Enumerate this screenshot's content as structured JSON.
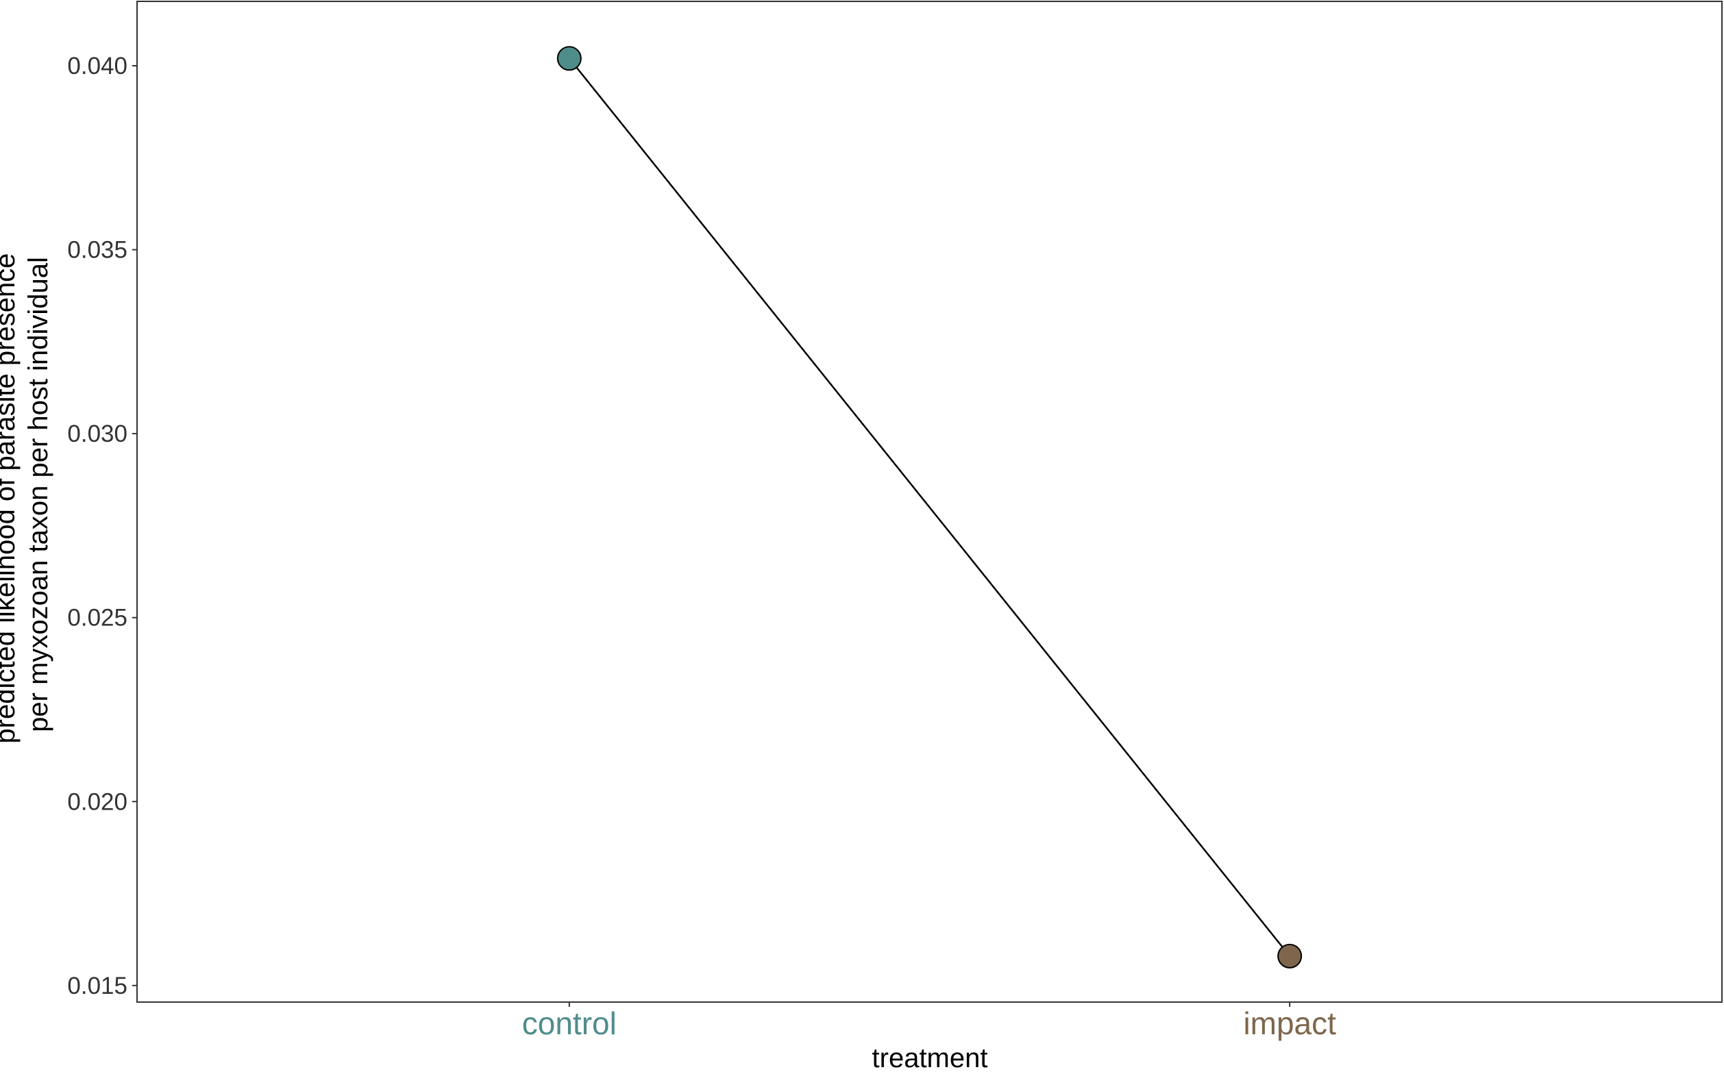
{
  "chart_data": {
    "type": "line",
    "title": "",
    "xlabel": "treatment",
    "ylabel_lines": [
      "predicted likelihood of parasite presence",
      "per myxozoan taxon per host individual"
    ],
    "categories": [
      "control",
      "impact"
    ],
    "values": [
      0.0402,
      0.0158
    ],
    "point_colors": [
      "#4F8D8B",
      "#7E664C"
    ],
    "category_label_colors": [
      "#4F8D8B",
      "#7E664C"
    ],
    "line_color": "#000000",
    "ylim": [
      0.01455,
      0.04175
    ],
    "yticks": [
      0.015,
      0.02,
      0.025,
      0.03,
      0.035,
      0.04
    ],
    "ytick_labels": [
      "0.015",
      "0.020",
      "0.025",
      "0.030",
      "0.035",
      "0.040"
    ],
    "grid": false,
    "legend": "none"
  }
}
